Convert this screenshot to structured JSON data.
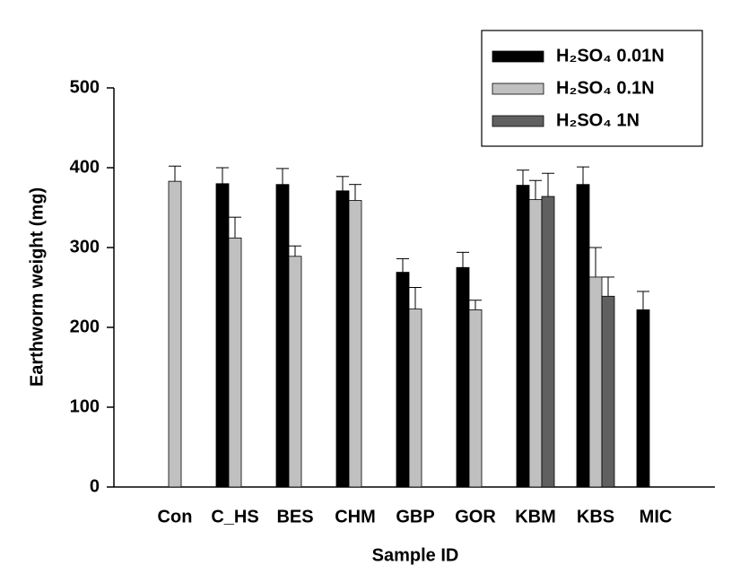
{
  "chart_data": {
    "type": "bar",
    "x_label": "Sample ID",
    "y_label": "Earthworm weight (mg)",
    "categories": [
      "Con",
      "C_HS",
      "BES",
      "CHM",
      "GBP",
      "GOR",
      "KBM",
      "KBS",
      "MIC"
    ],
    "series": [
      {
        "name": "H₂SO₄ 0.01N",
        "color": "#000000",
        "values": [
          null,
          380,
          379,
          371,
          269,
          275,
          378,
          379,
          222
        ],
        "errors": [
          null,
          20,
          20,
          18,
          17,
          19,
          19,
          22,
          23
        ]
      },
      {
        "name": "H₂SO₄ 0.1N",
        "color": "#c0c0c0",
        "values": [
          383,
          312,
          289,
          359,
          223,
          222,
          360,
          263,
          null
        ],
        "errors": [
          19,
          26,
          13,
          20,
          27,
          12,
          24,
          37,
          null
        ]
      },
      {
        "name": "H₂SO₄ 1N",
        "color": "#606060",
        "values": [
          null,
          null,
          null,
          null,
          null,
          null,
          364,
          239,
          null
        ],
        "errors": [
          null,
          null,
          null,
          null,
          null,
          null,
          29,
          24,
          null
        ]
      }
    ],
    "ylim": [
      0,
      500
    ],
    "yticks": [
      0,
      100,
      200,
      300,
      400,
      500
    ],
    "legend": "upper right"
  }
}
